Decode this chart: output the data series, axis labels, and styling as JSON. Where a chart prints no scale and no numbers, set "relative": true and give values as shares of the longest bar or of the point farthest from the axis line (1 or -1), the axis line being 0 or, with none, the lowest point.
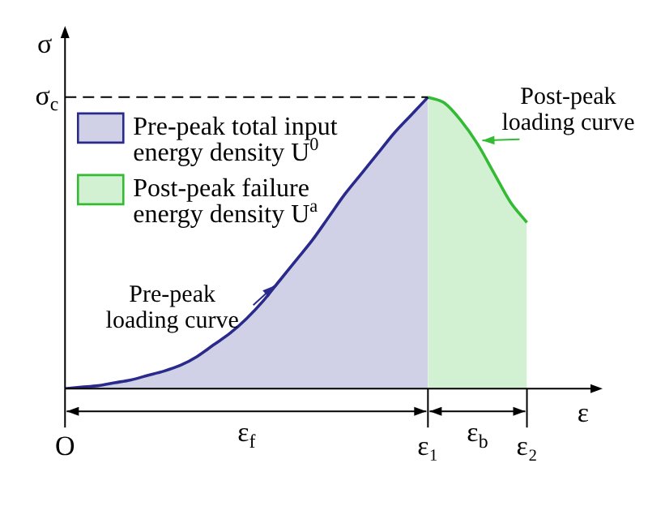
{
  "chart_data": {
    "type": "area",
    "relative": true,
    "xlabel": "ε",
    "ylabel": "σ",
    "categories": [
      "O",
      null,
      null,
      null,
      null,
      null,
      null,
      null,
      null,
      null,
      null,
      null,
      null,
      null,
      null,
      null,
      null,
      null,
      null,
      null,
      null,
      null,
      "ε₁",
      null,
      null,
      null,
      null,
      null,
      "ε₂",
      null,
      null,
      null,
      null
    ],
    "series": [
      {
        "name": "Pre-peak total input energy density U$^{0}$",
        "color": "#2a2a8c",
        "values": [
          0,
          0.005,
          0.01,
          0.02,
          0.03,
          0.045,
          0.06,
          0.08,
          0.11,
          0.15,
          0.19,
          0.24,
          0.3,
          0.37,
          0.44,
          0.51,
          0.59,
          0.67,
          0.74,
          0.81,
          0.88,
          0.94,
          1.0,
          null,
          null,
          null,
          null,
          null,
          null,
          null,
          null,
          null,
          null
        ]
      },
      {
        "name": "Post-peak failure energy density U$^{a}$",
        "color": "#33bb33",
        "values": [
          null,
          null,
          null,
          null,
          null,
          null,
          null,
          null,
          null,
          null,
          null,
          null,
          null,
          null,
          null,
          null,
          null,
          null,
          null,
          null,
          null,
          null,
          1.0,
          0.98,
          0.92,
          0.84,
          0.74,
          0.64,
          0.57,
          null,
          null,
          null,
          null
        ]
      }
    ],
    "ref_lines": [
      {
        "axis": "y",
        "value": 1.0,
        "label": "σ$_{c}$",
        "line_style": "dashed",
        "color": "#000000"
      }
    ],
    "annotations": [
      "Pre-peak loading curve",
      "Post-peak loading curve",
      "ε$_{f}$",
      "ε$_{b}$"
    ],
    "legend": "top left",
    "grid": false,
    "tick_labels": "x"
  }
}
